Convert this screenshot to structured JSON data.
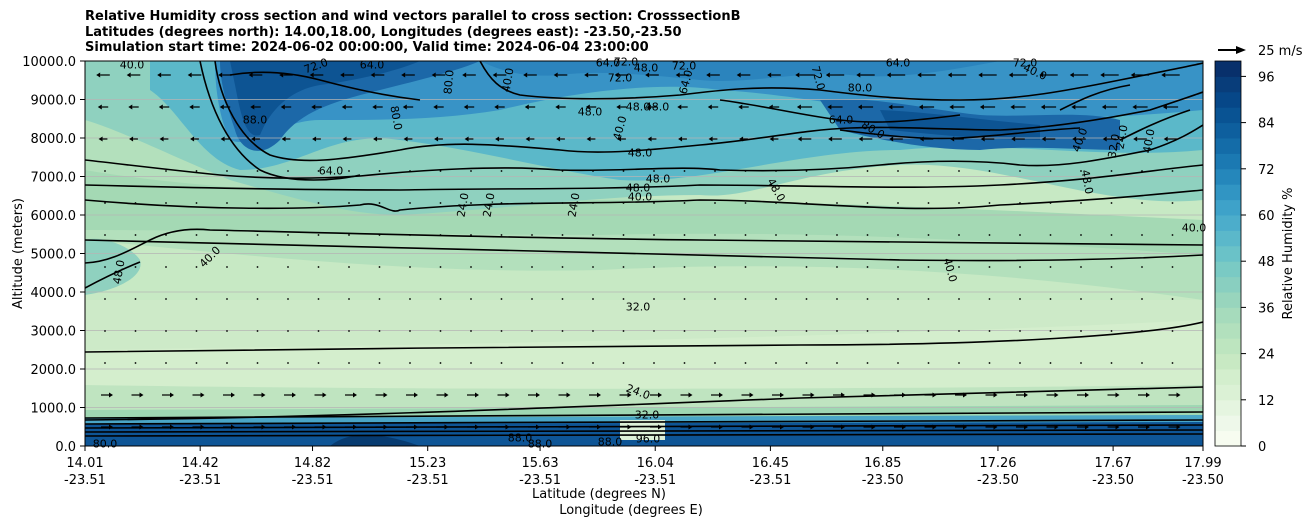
{
  "chart_data": {
    "type": "contour-cross-section",
    "title_lines": [
      "Relative Humidity cross section and wind vectors parallel to cross section: CrosssectionB",
      "Latitudes (degrees north): 14.00,18.00, Longitudes (degrees east): -23.50,-23.50",
      "Simulation start time: 2024-06-02 00:00:00, Valid time: 2024-06-04 23:00:00"
    ],
    "ylabel": "Altitude (meters)",
    "xlabel": "Latitude (degrees N)",
    "xlabel2": "Longitude (degrees E)",
    "ylim": [
      0,
      10000
    ],
    "xlim": [
      14.01,
      17.99
    ],
    "y_ticks": [
      "0.0",
      "1000.0",
      "2000.0",
      "3000.0",
      "4000.0",
      "5000.0",
      "6000.0",
      "7000.0",
      "8000.0",
      "9000.0",
      "10000.0"
    ],
    "x_ticks_lat": [
      "14.01",
      "14.42",
      "14.82",
      "15.23",
      "15.63",
      "16.04",
      "16.45",
      "16.85",
      "17.26",
      "17.67",
      "17.99"
    ],
    "x_ticks_lon": [
      "-23.51",
      "-23.51",
      "-23.51",
      "-23.51",
      "-23.51",
      "-23.51",
      "-23.51",
      "-23.50",
      "-23.50",
      "-23.50",
      "-23.50"
    ],
    "colorbar": {
      "label": "Relative Humidity %",
      "range": [
        0,
        100
      ],
      "tick_labels": [
        "0",
        "12",
        "24",
        "36",
        "48",
        "60",
        "72",
        "84",
        "96"
      ]
    },
    "quiver_key": "25 m/s",
    "contour_labels": [
      "40.0",
      "72.0",
      "64.0",
      "72.0",
      "64.0",
      "48.0",
      "72.0",
      "64.0",
      "72.0",
      "40.0",
      "80.0",
      "40.0",
      "88.0",
      "80.0",
      "48.0",
      "48.0",
      "40.0",
      "48.0",
      "72.0",
      "64.0",
      "72.0",
      "64.0",
      "80.0",
      "80.0",
      "40.0",
      "32.0",
      "24.0",
      "40.0",
      "64.0",
      "48.0",
      "48.0",
      "48.0",
      "40.0",
      "48.0",
      "48.0",
      "24.0",
      "24.0",
      "24.0",
      "40.0",
      "40.0",
      "48.0",
      "40.0",
      "32.0",
      "24.0",
      "32.0",
      "80.0",
      "88.0",
      "88.0",
      "88.0",
      "96.0"
    ],
    "rh_field_description": "relative humidity in percent over altitude and latitude"
  }
}
